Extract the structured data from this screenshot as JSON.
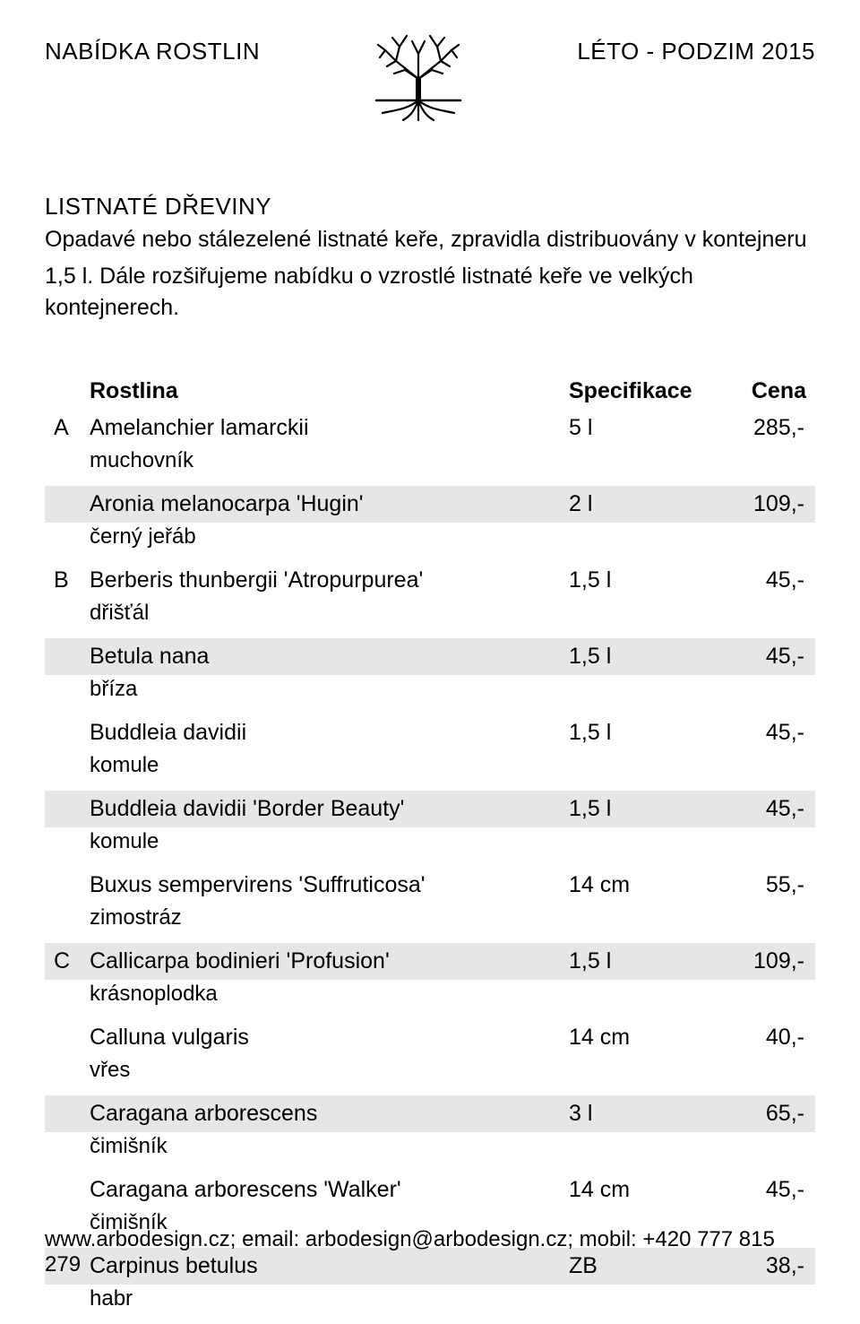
{
  "header": {
    "left": "NABÍDKA ROSTLIN",
    "right": "LÉTO -  PODZIM 2015"
  },
  "section": {
    "title": "LISTNATÉ DŘEVINY",
    "desc_line1": "Opadavé nebo stálezelené listnaté keře, zpravidla distribuovány v kontejneru",
    "desc_line2": "1,5 l. Dále rozšiřujeme nabídku o vzrostlé listnaté keře ve velkých kontejnerech."
  },
  "table": {
    "header": {
      "name": "Rostlina",
      "spec": "Specifikace",
      "price": "Cena"
    },
    "shaded_bg": "#e6e6e6",
    "rows": [
      {
        "letter": "A",
        "name": "Amelanchier lamarckii",
        "spec": "5 l",
        "price": "285,-",
        "sub": "muchovník",
        "shaded": false
      },
      {
        "letter": "",
        "name": "Aronia melanocarpa 'Hugin'",
        "spec": "2 l",
        "price": "109,-",
        "sub": "černý jeřáb",
        "shaded": true
      },
      {
        "letter": "B",
        "name": "Berberis thunbergii 'Atropurpurea'",
        "spec": "1,5 l",
        "price": "45,-",
        "sub": "dřišťál",
        "shaded": false
      },
      {
        "letter": "",
        "name": "Betula nana",
        "spec": "1,5 l",
        "price": "45,-",
        "sub": "bříza",
        "shaded": true
      },
      {
        "letter": "",
        "name": "Buddleia davidii",
        "spec": "1,5 l",
        "price": "45,-",
        "sub": "komule",
        "shaded": false
      },
      {
        "letter": "",
        "name": "Buddleia davidii 'Border Beauty'",
        "spec": "1,5 l",
        "price": "45,-",
        "sub": "komule",
        "shaded": true
      },
      {
        "letter": "",
        "name": "Buxus sempervirens 'Suffruticosa'",
        "spec": "14 cm",
        "price": "55,-",
        "sub": "zimostráz",
        "shaded": false
      },
      {
        "letter": "C",
        "name": "Callicarpa bodinieri 'Profusion'",
        "spec": "1,5 l",
        "price": "109,-",
        "sub": "krásnoplodka",
        "shaded": true
      },
      {
        "letter": "",
        "name": "Calluna vulgaris",
        "spec": "14 cm",
        "price": "40,-",
        "sub": "vřes",
        "shaded": false
      },
      {
        "letter": "",
        "name": "Caragana arborescens",
        "spec": "3 l",
        "price": "65,-",
        "sub": "čimišník",
        "shaded": true
      },
      {
        "letter": "",
        "name": "Caragana arborescens 'Walker'",
        "spec": "14 cm",
        "price": "45,-",
        "sub": "čimišník",
        "shaded": false
      },
      {
        "letter": "",
        "name": "Carpinus betulus",
        "spec": "ZB",
        "price": "38,-",
        "sub": "habr",
        "shaded": true
      }
    ]
  },
  "footer": {
    "text": "www.arbodesign.cz;  email: arbodesign@arbodesign.cz;  mobil: +420 777 815 279"
  }
}
